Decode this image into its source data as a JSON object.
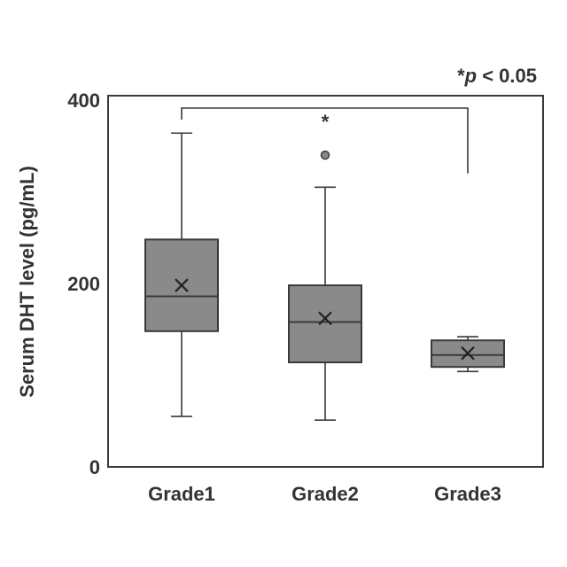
{
  "chart_data": {
    "type": "boxplot",
    "ylabel": "Serum DHT level (pg/mL)",
    "ylim": [
      0,
      400
    ],
    "yticks": [
      "0",
      "200",
      "400"
    ],
    "categories": [
      "Grade1",
      "Grade2",
      "Grade3"
    ],
    "series": [
      {
        "category": "Grade1",
        "min": 55,
        "q1": 148,
        "median": 186,
        "q3": 248,
        "max": 364,
        "mean": 198,
        "outliers": []
      },
      {
        "category": "Grade2",
        "min": 51,
        "q1": 114,
        "median": 158,
        "q3": 198,
        "max": 305,
        "mean": 162,
        "outliers": [
          340
        ]
      },
      {
        "category": "Grade3",
        "min": 104,
        "q1": 109,
        "median": 122,
        "q3": 138,
        "max": 142,
        "mean": 124,
        "outliers": []
      }
    ],
    "significance": {
      "from": "Grade1",
      "to": "Grade3",
      "marker": "*"
    },
    "legend_note": {
      "star": "*",
      "p": "p",
      "rest": " < 0.05"
    },
    "colors": {
      "box_fill": "#8a8a8a",
      "line": "#3a3a3a",
      "text": "#333333"
    }
  }
}
